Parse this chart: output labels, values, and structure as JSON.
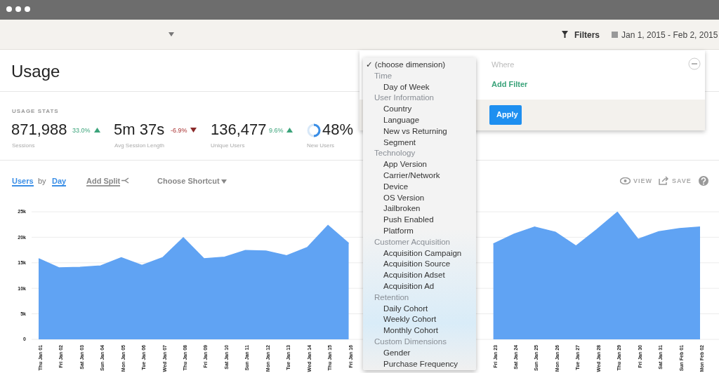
{
  "chart_data": {
    "type": "area",
    "title": "Usage",
    "categories": [
      "Thu Jan 01",
      "Fri Jan 02",
      "Sat Jan 03",
      "Sun Jan 04",
      "Mon Jan 05",
      "Tue Jan 06",
      "Wed Jan 07",
      "Thu Jan 08",
      "Fri Jan 09",
      "Sat Jan 10",
      "Sun Jan 11",
      "Mon Jan 12",
      "Tue Jan 13",
      "Wed Jan 14",
      "Thu Jan 15",
      "Fri Jan 16",
      null,
      null,
      null,
      null,
      null,
      null,
      "Fri Jan 23",
      "Sat Jan 24",
      "Sun Jan 25",
      "Mon Jan 26",
      "Tue Jan 27",
      "Wed Jan 28",
      "Thu Jan 29",
      "Fri Jan 30",
      "Sat Jan 31",
      "Sun Feb 01",
      "Mon Feb 02"
    ],
    "values": [
      15800,
      14000,
      14100,
      14400,
      16000,
      14500,
      16000,
      19900,
      15800,
      16100,
      17400,
      17300,
      16400,
      18000,
      22300,
      18800,
      null,
      null,
      null,
      null,
      null,
      null,
      18700,
      20600,
      22000,
      21000,
      18300,
      21500,
      24900,
      19600,
      21100,
      21700,
      22000
    ],
    "color": "#60a3f3",
    "ylim": [
      0,
      25000
    ],
    "yticks": [
      0,
      {
        "value": 5000,
        "label": "5k"
      },
      {
        "value": 10000,
        "label": "10k"
      },
      {
        "value": 15000,
        "label": "15k"
      },
      {
        "value": 20000,
        "label": "20k"
      },
      {
        "value": 25000,
        "label": "25k"
      }
    ],
    "grid": "y",
    "annotations": [
      "Filters",
      "Jan 1, 2015 - Feb 2, 2015",
      "USAGE STATS",
      "871,988",
      "33.0%",
      "Sessions",
      "5m 37s",
      "-6.9%",
      "Avg Session Length",
      "136,477",
      "9.6%",
      "Unique Users",
      "48%",
      "New Users",
      "Users",
      "by",
      "Day",
      "Add Split",
      "Choose Shortcut",
      "VIEW",
      "SAVE",
      "Where",
      "Add Filter",
      "Apply",
      "✓ (choose dimension)",
      "Time",
      "Day of Week",
      "User Information",
      "Country",
      "Language",
      "New vs Returning",
      "Segment",
      "Technology",
      "App Version",
      "Carrier/Network",
      "Device",
      "OS Version",
      "Jailbroken",
      "Push Enabled",
      "Platform",
      "Customer Acquisition",
      "Acquisition Campaign",
      "Acquisition Source",
      "Acquisition Adset",
      "Acquisition Ad",
      "Retention",
      "Daily Cohort",
      "Weekly Cohort",
      "Monthly Cohort",
      "Custom Dimensions",
      "Gender",
      "Purchase Frequency"
    ]
  }
}
